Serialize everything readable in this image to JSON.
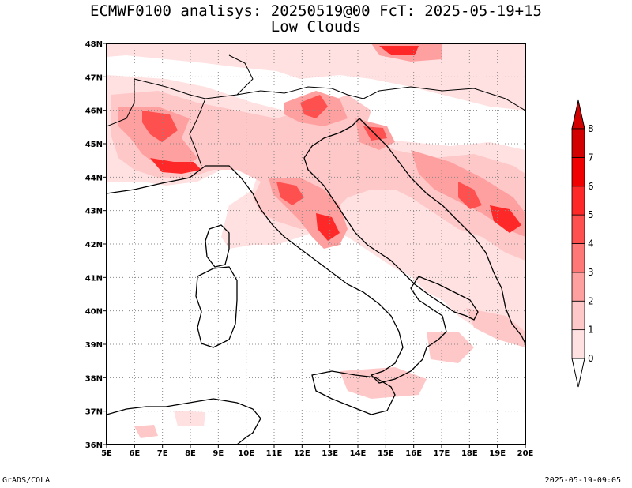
{
  "title": {
    "line1": "ECMWF0100 analisys: 20250519@00 FcT: 2025-05-19+15",
    "line2": "Low Clouds"
  },
  "footer": {
    "left": "GrADS/COLA",
    "right": "2025-05-19-09:05"
  },
  "map": {
    "lon_range": [
      5,
      20
    ],
    "lat_range": [
      36,
      48
    ],
    "lon_labels": [
      "5E",
      "6E",
      "7E",
      "8E",
      "9E",
      "10E",
      "11E",
      "12E",
      "13E",
      "14E",
      "15E",
      "16E",
      "17E",
      "18E",
      "19E",
      "20E"
    ],
    "lat_labels": [
      "36N",
      "37N",
      "38N",
      "39N",
      "40N",
      "41N",
      "42N",
      "43N",
      "44N",
      "45N",
      "46N",
      "47N",
      "48N"
    ],
    "grid": "dotted"
  },
  "colorbar": {
    "levels": [
      "0",
      "1",
      "2",
      "3",
      "4",
      "5",
      "6",
      "7",
      "8"
    ],
    "colors": [
      "#ffe1e1",
      "#ffc8c8",
      "#ffa0a0",
      "#ff7878",
      "#ff5050",
      "#ff2828",
      "#f00000",
      "#d20000"
    ]
  }
}
